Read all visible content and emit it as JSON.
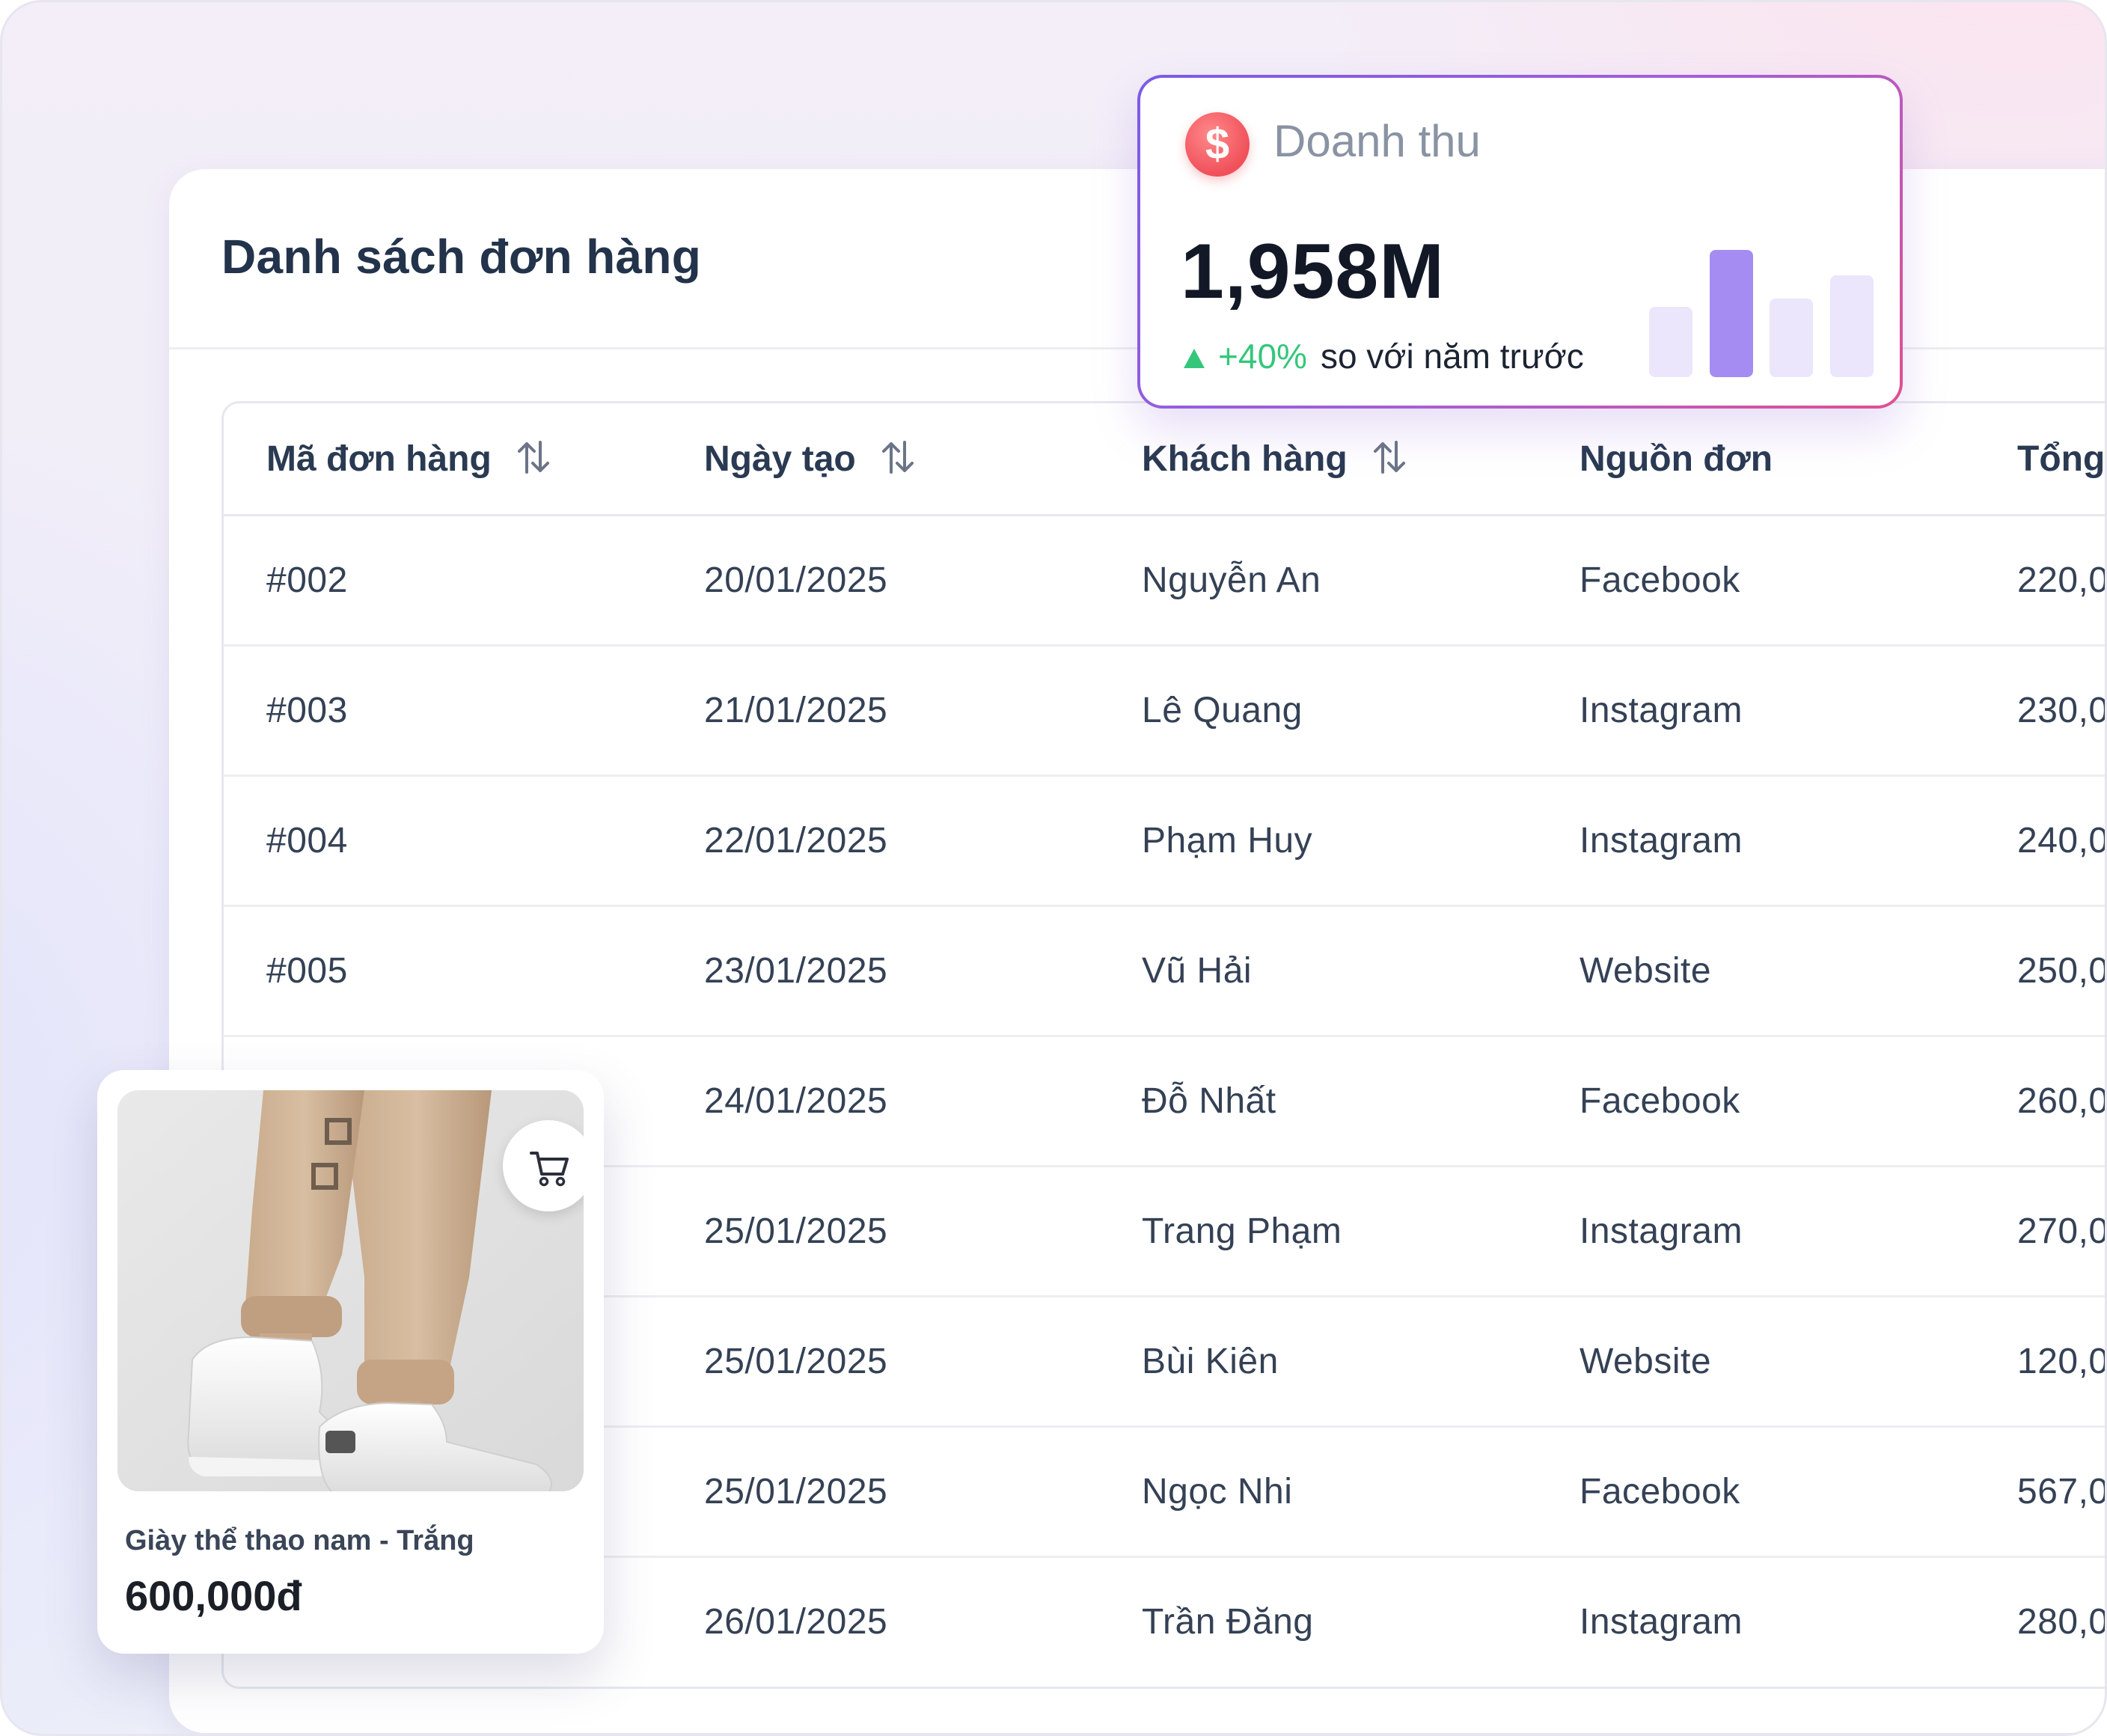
{
  "panel": {
    "title": "Danh sách đơn hàng"
  },
  "table": {
    "headers": [
      "Mã đơn hàng",
      "Ngày tạo",
      "Khách hàng",
      "Nguồn đơn",
      "Tổng"
    ],
    "rows": [
      [
        "#002",
        "20/01/2025",
        "Nguyễn An",
        "Facebook",
        "220,0"
      ],
      [
        "#003",
        "21/01/2025",
        "Lê Quang",
        "Instagram",
        "230,0"
      ],
      [
        "#004",
        "22/01/2025",
        "Phạm Huy",
        "Instagram",
        "240,0"
      ],
      [
        "#005",
        "23/01/2025",
        "Vũ Hải",
        "Website",
        "250,0"
      ],
      [
        "",
        "24/01/2025",
        "Đỗ Nhất",
        "Facebook",
        "260,0"
      ],
      [
        "",
        "25/01/2025",
        "Trang Phạm",
        "Instagram",
        "270,0"
      ],
      [
        "",
        "25/01/2025",
        "Bùi Kiên",
        "Website",
        "120,0"
      ],
      [
        "",
        "25/01/2025",
        "Ngọc Nhi",
        "Facebook",
        "567,0"
      ],
      [
        "",
        "26/01/2025",
        "Trần Đăng",
        "Instagram",
        "280,0"
      ]
    ]
  },
  "revenue": {
    "icon": "dollar-icon",
    "icon_glyph": "$",
    "label": "Doanh thu",
    "value": "1,958M",
    "change": "+40%",
    "note": "so với năm trước",
    "mini_chart_relative_values": [
      0.55,
      1.0,
      0.62,
      0.8
    ],
    "highlight_index": 1,
    "highlight_color": "#a48cf2",
    "muted_color": "#ebe6fb"
  },
  "product": {
    "name": "Giày thể thao nam - Trắng",
    "price": "600,000đ",
    "cart_icon": "cart-icon"
  },
  "colors": {
    "accent_green": "#34c77b",
    "title": "#23334b"
  }
}
